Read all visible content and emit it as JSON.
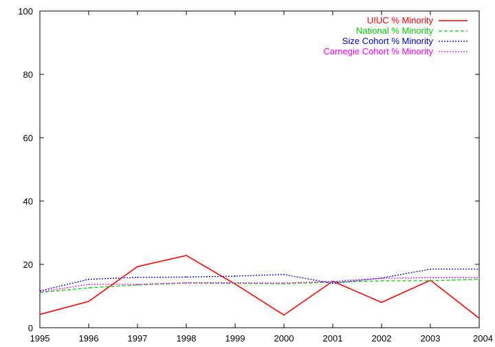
{
  "chart_data": {
    "type": "line",
    "title": "",
    "xlabel": "",
    "ylabel": "",
    "xlim": [
      1995,
      2004
    ],
    "ylim": [
      0,
      100
    ],
    "x": [
      1995,
      1996,
      1997,
      1998,
      1999,
      2000,
      2001,
      2002,
      2003,
      2004
    ],
    "x_ticks": [
      "1995",
      "1996",
      "1997",
      "1998",
      "1999",
      "2000",
      "2001",
      "2002",
      "2003",
      "2004"
    ],
    "y_ticks": [
      "0",
      "20",
      "40",
      "60",
      "80",
      "100"
    ],
    "grid": false,
    "legend_position": "top-right",
    "series": [
      {
        "name": "UIUC % Minority",
        "color": "#ff0000",
        "style": "solid",
        "values": [
          4.2,
          8.3,
          19.3,
          22.8,
          13.8,
          4.0,
          14.7,
          8.0,
          15.0,
          3.0
        ]
      },
      {
        "name": "National % Minority",
        "color": "#00cc00",
        "style": "dashed",
        "values": [
          11.1,
          12.6,
          13.5,
          14.1,
          14.0,
          13.9,
          14.4,
          14.8,
          14.8,
          15.3
        ]
      },
      {
        "name": "Size Cohort % Minority",
        "color": "#0000cc",
        "style": "dotted",
        "values": [
          11.6,
          15.3,
          15.9,
          16.0,
          16.3,
          16.8,
          14.0,
          15.7,
          18.5,
          18.5
        ]
      },
      {
        "name": "Carnegie Cohort % Minority",
        "color": "#ff00ff",
        "style": "dotted",
        "values": [
          11.3,
          13.7,
          13.7,
          14.2,
          14.2,
          14.1,
          14.6,
          15.6,
          15.8,
          15.8
        ]
      }
    ]
  }
}
